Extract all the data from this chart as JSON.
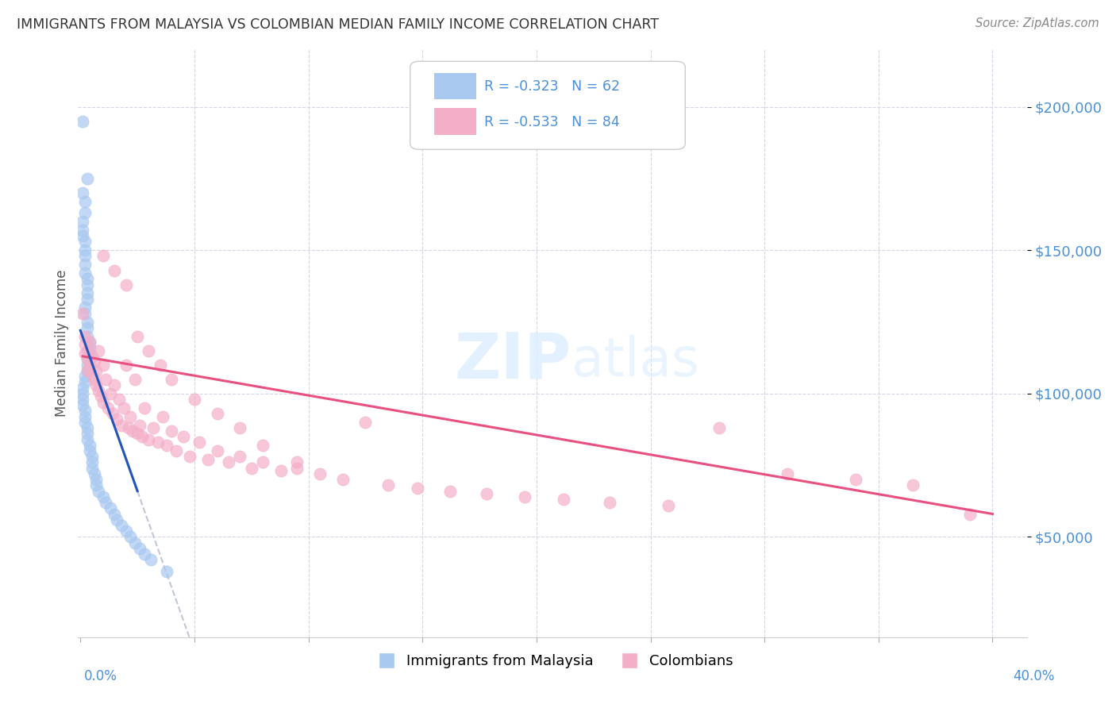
{
  "title": "IMMIGRANTS FROM MALAYSIA VS COLOMBIAN MEDIAN FAMILY INCOME CORRELATION CHART",
  "source": "Source: ZipAtlas.com",
  "ylabel": "Median Family Income",
  "yticks": [
    50000,
    100000,
    150000,
    200000
  ],
  "ytick_labels": [
    "$50,000",
    "$100,000",
    "$150,000",
    "$200,000"
  ],
  "xlim": [
    -0.001,
    0.415
  ],
  "ylim": [
    15000,
    220000
  ],
  "legend_label1": "Immigrants from Malaysia",
  "legend_label2": "Colombians",
  "color_malaysia": "#a8c8f0",
  "color_colombian": "#f4afc8",
  "color_line_malaysia": "#2255bb",
  "color_line_colombian": "#e85080",
  "color_line_ext": "#c0c8d8",
  "watermark_zip": "ZIP",
  "watermark_atlas": "atlas",
  "malaysia_x": [
    0.001,
    0.003,
    0.001,
    0.002,
    0.002,
    0.001,
    0.001,
    0.001,
    0.002,
    0.002,
    0.002,
    0.002,
    0.002,
    0.003,
    0.003,
    0.003,
    0.003,
    0.002,
    0.002,
    0.003,
    0.003,
    0.003,
    0.004,
    0.004,
    0.004,
    0.003,
    0.003,
    0.003,
    0.002,
    0.002,
    0.001,
    0.001,
    0.001,
    0.001,
    0.002,
    0.002,
    0.002,
    0.003,
    0.003,
    0.003,
    0.004,
    0.004,
    0.005,
    0.005,
    0.005,
    0.006,
    0.007,
    0.007,
    0.008,
    0.01,
    0.011,
    0.013,
    0.015,
    0.016,
    0.018,
    0.02,
    0.022,
    0.024,
    0.026,
    0.028,
    0.031,
    0.038
  ],
  "malaysia_y": [
    195000,
    175000,
    170000,
    167000,
    163000,
    160000,
    157000,
    155000,
    153000,
    150000,
    148000,
    145000,
    142000,
    140000,
    138000,
    135000,
    133000,
    130000,
    128000,
    125000,
    123000,
    120000,
    118000,
    116000,
    114000,
    112000,
    110000,
    108000,
    106000,
    104000,
    102000,
    100000,
    98000,
    96000,
    94000,
    92000,
    90000,
    88000,
    86000,
    84000,
    82000,
    80000,
    78000,
    76000,
    74000,
    72000,
    70000,
    68000,
    66000,
    64000,
    62000,
    60000,
    58000,
    56000,
    54000,
    52000,
    50000,
    48000,
    46000,
    44000,
    42000,
    38000
  ],
  "colombian_x": [
    0.001,
    0.002,
    0.002,
    0.002,
    0.003,
    0.003,
    0.003,
    0.004,
    0.004,
    0.005,
    0.005,
    0.006,
    0.006,
    0.007,
    0.007,
    0.008,
    0.008,
    0.009,
    0.01,
    0.01,
    0.011,
    0.012,
    0.013,
    0.014,
    0.015,
    0.016,
    0.017,
    0.018,
    0.019,
    0.02,
    0.021,
    0.022,
    0.023,
    0.024,
    0.025,
    0.026,
    0.027,
    0.028,
    0.03,
    0.032,
    0.034,
    0.036,
    0.038,
    0.04,
    0.042,
    0.045,
    0.048,
    0.052,
    0.056,
    0.06,
    0.065,
    0.07,
    0.075,
    0.08,
    0.088,
    0.095,
    0.105,
    0.115,
    0.125,
    0.135,
    0.148,
    0.162,
    0.178,
    0.195,
    0.212,
    0.232,
    0.258,
    0.28,
    0.31,
    0.34,
    0.365,
    0.39,
    0.01,
    0.015,
    0.02,
    0.025,
    0.03,
    0.035,
    0.04,
    0.05,
    0.06,
    0.07,
    0.08,
    0.095
  ],
  "colombian_y": [
    128000,
    120000,
    117000,
    114000,
    115000,
    112000,
    108000,
    118000,
    110000,
    113000,
    107000,
    111000,
    105000,
    108000,
    103000,
    115000,
    101000,
    99000,
    110000,
    97000,
    105000,
    95000,
    100000,
    93000,
    103000,
    91000,
    98000,
    89000,
    95000,
    110000,
    88000,
    92000,
    87000,
    105000,
    86000,
    89000,
    85000,
    95000,
    84000,
    88000,
    83000,
    92000,
    82000,
    87000,
    80000,
    85000,
    78000,
    83000,
    77000,
    80000,
    76000,
    78000,
    74000,
    76000,
    73000,
    74000,
    72000,
    70000,
    90000,
    68000,
    67000,
    66000,
    65000,
    64000,
    63000,
    62000,
    61000,
    88000,
    72000,
    70000,
    68000,
    58000,
    148000,
    143000,
    138000,
    120000,
    115000,
    110000,
    105000,
    98000,
    93000,
    88000,
    82000,
    76000
  ]
}
